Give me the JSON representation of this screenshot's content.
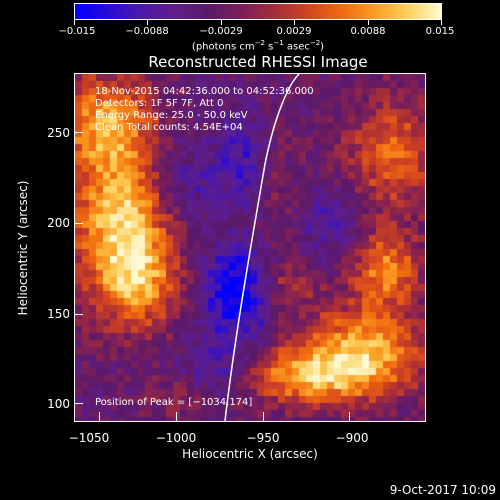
{
  "colorbar": {
    "tick_labels": [
      "−0.015",
      "−0.0088",
      "−0.0029",
      "0.0029",
      "0.0088",
      "0.015"
    ],
    "units_prefix": "(photons cm",
    "units_exp1": "−2",
    "units_mid1": " s",
    "units_exp2": "−1",
    "units_mid2": " asec",
    "units_exp3": "−2",
    "units_suffix": ")",
    "range": [
      -0.015,
      0.015
    ],
    "colors": [
      "#0000ff",
      "#2a0bd6",
      "#4b1aa8",
      "#601e88",
      "#5a1a6a",
      "#7a1f5a",
      "#a52d3a",
      "#d24421",
      "#f06a10",
      "#fb9d22",
      "#fdd05c",
      "#fff9d2"
    ]
  },
  "title": "Reconstructed RHESSI Image",
  "info": {
    "line1": "18-Nov-2015 04:42:36.000 to 04:52:36.000",
    "line2": "Detectors: 1F 5F 7F, Att 0",
    "line3": "Energy Range: 25.0 - 50.0 keV",
    "line4": "Clean     Total counts: 4.54E+04"
  },
  "peak": "Position of Peak = [−1034,174]",
  "x_axis": {
    "title": "Heliocentric X (arcsec)",
    "tick_labels": [
      "−1050",
      "−1000",
      "−950",
      "−900"
    ],
    "range": [
      -1055,
      -865
    ]
  },
  "y_axis": {
    "title": "Heliocentric Y (arcsec)",
    "tick_labels": [
      "100",
      "150",
      "200",
      "250"
    ],
    "range": [
      90,
      285
    ]
  },
  "date_stamp": "9-Oct-2017 10:09",
  "limb_color": "#ffffff"
}
